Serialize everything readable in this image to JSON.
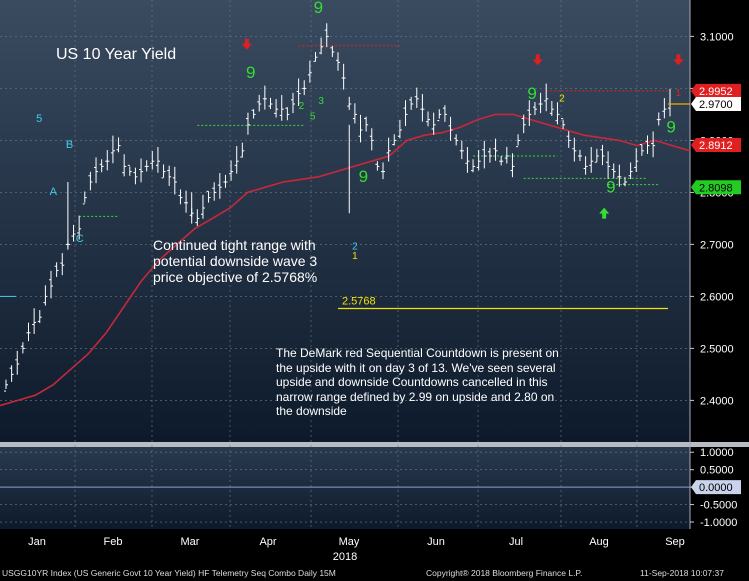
{
  "title": "US 10 Year Yield",
  "annotation_objective": "Continued tight range with potential downside wave 3 price objective of 2.5768%",
  "annotation_demark": "The DeMark red Sequential Countdown is present on the upside with it on day 3 of 13. We've seen several upside and downside Countdowns cancelled  in this narrow range defined by 2.99 on upside and 2.80 on the downside",
  "footer": {
    "left": "USGG10YR Index (US Generic Govt 10 Year Yield) HF Telemetry Seq Combo  Daily 15M",
    "center": "Copyright® 2018 Bloomberg Finance L.P.",
    "right": "11-Sep-2018 10:07:37"
  },
  "colors": {
    "background_top": "#3a4b60",
    "background_bottom": "#0d1a2b",
    "bars": "#ffffff",
    "moving_average": "#c8283a",
    "setup_green": "#33dd33",
    "countdown_cyan": "#44ccee",
    "label_yellow": "#f2e200",
    "resistance_red": "#e02020",
    "support_green": "#33dd33"
  },
  "chart_data": [
    {
      "type": "ohlc",
      "title": "US 10 Year Yield",
      "x_ticks": [
        "Jan",
        "Feb",
        "Mar",
        "Apr",
        "May",
        "Jun",
        "Jul",
        "Aug",
        "Sep"
      ],
      "year_label": "2018",
      "y_ticks": [
        "3.1000",
        "3.0000",
        "2.9000",
        "2.8000",
        "2.7000",
        "2.6000",
        "2.5000",
        "2.4000"
      ],
      "ylim": [
        2.32,
        3.17
      ],
      "price_tags": [
        {
          "value": "2.9952",
          "color": "#e02020",
          "text_color": "#ffffff",
          "y": 2.9952
        },
        {
          "value": "2.9700",
          "color": "#ffffff",
          "text_color": "#000000",
          "y": 2.97
        },
        {
          "value": "2.8912",
          "color": "#e02020",
          "text_color": "#ffffff",
          "y": 2.8912
        },
        {
          "value": "2.8098",
          "color": "#22cc22",
          "text_color": "#000000",
          "y": 2.8098
        }
      ],
      "objective": {
        "label": "2.5768",
        "value": 2.5768
      },
      "wave_labels": [
        {
          "text": "5",
          "x": 5.9,
          "y": 2.935,
          "color": "#44ccee"
        },
        {
          "text": "A",
          "x": 8.4,
          "y": 2.795,
          "color": "#44ccee"
        },
        {
          "text": "B",
          "x": 11.3,
          "y": 2.885,
          "color": "#44ccee"
        },
        {
          "text": "C",
          "x": 13.1,
          "y": 2.705,
          "color": "#44ccee"
        }
      ],
      "close_series": [
        2.43,
        2.45,
        2.47,
        2.5,
        2.53,
        2.55,
        2.56,
        2.6,
        2.62,
        2.65,
        2.66,
        2.7,
        2.72,
        2.73,
        2.79,
        2.82,
        2.84,
        2.85,
        2.86,
        2.88,
        2.89,
        2.85,
        2.84,
        2.83,
        2.84,
        2.85,
        2.86,
        2.86,
        2.84,
        2.83,
        2.82,
        2.79,
        2.78,
        2.76,
        2.75,
        2.77,
        2.79,
        2.8,
        2.81,
        2.82,
        2.84,
        2.86,
        2.88,
        2.93,
        2.95,
        2.97,
        2.98,
        2.97,
        2.96,
        2.96,
        2.95,
        2.97,
        2.99,
        3.0,
        3.03,
        3.06,
        3.08,
        3.1,
        3.07,
        3.05,
        3.02,
        2.97,
        2.95,
        2.92,
        2.93,
        2.9,
        2.85,
        2.84,
        2.88,
        2.9,
        2.92,
        2.95,
        2.97,
        2.98,
        2.96,
        2.94,
        2.93,
        2.95,
        2.95,
        2.92,
        2.9,
        2.88,
        2.86,
        2.85,
        2.86,
        2.87,
        2.87,
        2.88,
        2.86,
        2.87,
        2.85,
        2.9,
        2.93,
        2.95,
        2.96,
        2.97,
        2.98,
        2.96,
        2.95,
        2.93,
        2.9,
        2.88,
        2.87,
        2.85,
        2.86,
        2.87,
        2.87,
        2.85,
        2.84,
        2.83,
        2.82,
        2.84,
        2.86,
        2.88,
        2.89,
        2.89,
        2.94,
        2.96,
        2.97
      ],
      "moving_average": [
        2.39,
        2.4,
        2.41,
        2.43,
        2.46,
        2.49,
        2.53,
        2.58,
        2.63,
        2.67,
        2.7,
        2.73,
        2.75,
        2.77,
        2.8,
        2.81,
        2.82,
        2.825,
        2.83,
        2.84,
        2.85,
        2.86,
        2.87,
        2.9,
        2.91,
        2.915,
        2.925,
        2.94,
        2.95,
        2.95,
        2.94,
        2.93,
        2.92,
        2.91,
        2.905,
        2.9,
        2.89,
        2.9,
        2.89,
        2.88
      ],
      "resistance_lines": [
        {
          "from": 52,
          "to": 70,
          "y": 3.082
        },
        {
          "from": 96,
          "to": 124,
          "y": 2.9952
        }
      ],
      "support_lines": [
        {
          "from": 13,
          "to": 20,
          "y": 2.754
        },
        {
          "from": 34,
          "to": 53,
          "y": 2.929
        },
        {
          "from": 83,
          "to": 98,
          "y": 2.87
        },
        {
          "from": 92,
          "to": 114,
          "y": 2.827
        },
        {
          "from": 107,
          "to": 116,
          "y": 2.815
        }
      ],
      "sequential_counts": [
        {
          "text": "9",
          "x": 43.5,
          "y": 3.02,
          "color": "#33dd33"
        },
        {
          "text": "9",
          "x": 55.5,
          "y": 3.145,
          "color": "#33dd33"
        },
        {
          "text": "9",
          "x": 63.5,
          "y": 2.82,
          "color": "#33dd33"
        },
        {
          "text": "9",
          "x": 93.5,
          "y": 2.98,
          "color": "#33dd33"
        },
        {
          "text": "9",
          "x": 107.5,
          "y": 2.8,
          "color": "#33dd33"
        },
        {
          "text": "9",
          "x": 118.2,
          "y": 2.915,
          "color": "#33dd33"
        },
        {
          "text": "2",
          "x": 62.0,
          "y": 2.69,
          "color": "#44ccee"
        },
        {
          "text": "1",
          "x": 62.0,
          "y": 2.672,
          "color": "#f2e200"
        },
        {
          "text": "2",
          "x": 98.8,
          "y": 2.975,
          "color": "#f2e200"
        },
        {
          "text": "1",
          "x": 119.5,
          "y": 2.985,
          "color": "#e02020"
        },
        {
          "text": "2",
          "x": 52.5,
          "y": 2.96,
          "color": "#33dd33"
        },
        {
          "text": "5",
          "x": 54.5,
          "y": 2.94,
          "color": "#33dd33"
        },
        {
          "text": "3",
          "x": 56.0,
          "y": 2.97,
          "color": "#33dd33"
        }
      ],
      "arrows": [
        {
          "dir": "down",
          "x": 42.8,
          "y": 3.08,
          "color": "#e02020"
        },
        {
          "dir": "down",
          "x": 94.5,
          "y": 3.05,
          "color": "#e02020"
        },
        {
          "dir": "down",
          "x": 119.5,
          "y": 3.05,
          "color": "#e02020"
        },
        {
          "dir": "up",
          "x": 106.3,
          "y": 2.765,
          "color": "#33dd33"
        }
      ]
    },
    {
      "type": "line",
      "title": "",
      "y_ticks": [
        "1.0000",
        "0.5000",
        "0.0000",
        "-0.5000",
        "-1.0000"
      ],
      "ylim": [
        -1.2,
        1.15
      ],
      "value_tag": "0.0000",
      "series": [
        {
          "values": [
            0,
            0
          ]
        }
      ]
    }
  ]
}
